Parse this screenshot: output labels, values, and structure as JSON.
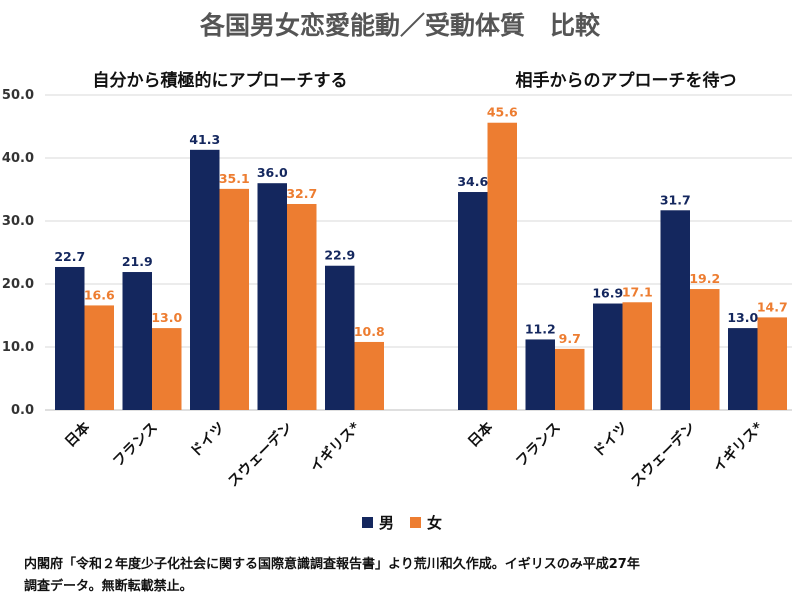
{
  "title": "各国男女恋愛能動／受動体質　比較",
  "colors": {
    "male": "#14275e",
    "female": "#ed7d31",
    "grid": "#d9d9d9",
    "axis": "#bfbfbf"
  },
  "legend": {
    "position": "bottom-center"
  },
  "footnote": {
    "line1": "内閣府「令和２年度少子化社会に関する国際意識調査報告書」より荒川和久作成。イギリスのみ平成27年",
    "line2": "調査データ。無断転載禁止。"
  },
  "chart_data": [
    {
      "type": "bar",
      "title": "自分から積極的にアプローチする",
      "categories": [
        "日本",
        "フランス",
        "ドイツ",
        "スウェーデン",
        "イギリス*"
      ],
      "series": [
        {
          "name": "男",
          "values": [
            22.7,
            21.9,
            41.3,
            36.0,
            22.9
          ]
        },
        {
          "name": "女",
          "values": [
            16.6,
            13.0,
            35.1,
            32.7,
            10.8
          ]
        }
      ],
      "ylim": [
        0,
        50
      ],
      "yticks": [
        "0.0",
        "10.0",
        "20.0",
        "30.0",
        "40.0",
        "50.0"
      ],
      "grid": true
    },
    {
      "type": "bar",
      "title": "相手からのアプローチを待つ",
      "categories": [
        "日本",
        "フランス",
        "ドイツ",
        "スウェーデン",
        "イギリス*"
      ],
      "series": [
        {
          "name": "男",
          "values": [
            34.6,
            11.2,
            16.9,
            31.7,
            13.0
          ]
        },
        {
          "name": "女",
          "values": [
            45.6,
            9.7,
            17.1,
            19.2,
            14.7
          ]
        }
      ],
      "ylim": [
        0,
        50
      ],
      "grid": true
    }
  ]
}
